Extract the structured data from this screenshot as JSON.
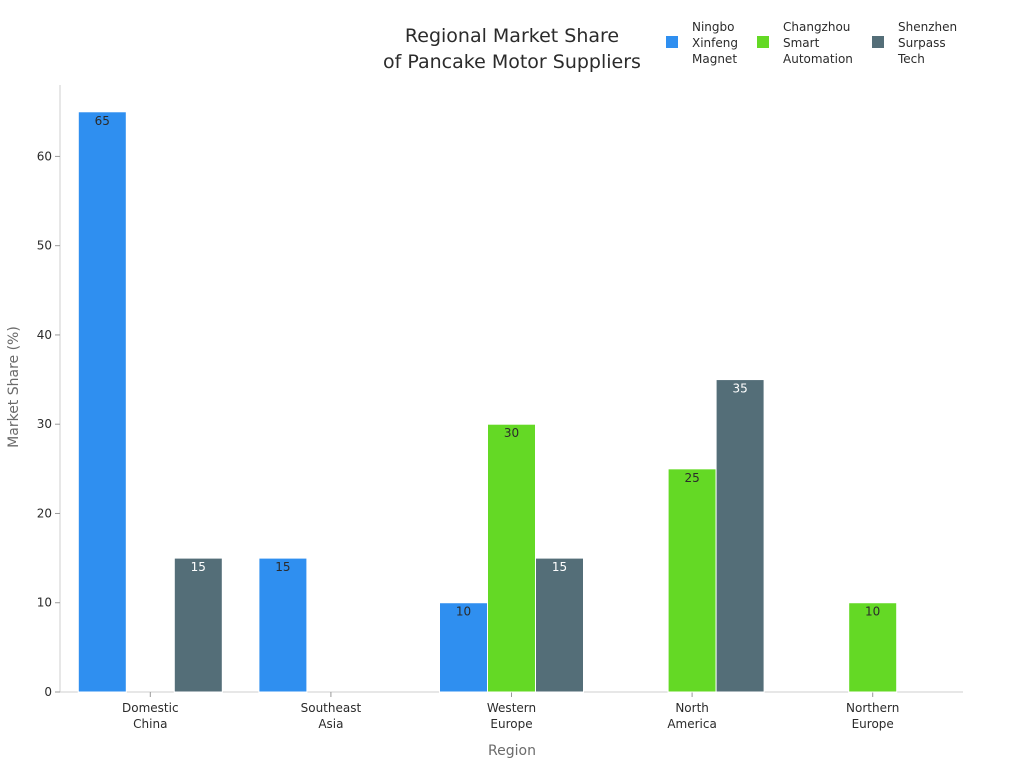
{
  "chart_data": {
    "type": "bar",
    "title_lines": [
      "Regional Market Share",
      "of Pancake Motor Suppliers"
    ],
    "xlabel": "Region",
    "ylabel": "Market Share (%)",
    "categories": [
      [
        "Domestic",
        "China"
      ],
      [
        "Southeast",
        "Asia"
      ],
      [
        "Western",
        "Europe"
      ],
      [
        "North",
        "America"
      ],
      [
        "Northern",
        "Europe"
      ]
    ],
    "series": [
      {
        "name": "Ningbo Xinfeng Magnet",
        "legend_lines": [
          "Ningbo",
          "Xinfeng",
          "Magnet"
        ],
        "color": "#2f8ff0",
        "values": [
          65,
          15,
          10,
          null,
          null
        ]
      },
      {
        "name": "Changzhou Smart Automation",
        "legend_lines": [
          "Changzhou",
          "Smart",
          "Automation"
        ],
        "color": "#64d925",
        "values": [
          null,
          null,
          30,
          25,
          10
        ]
      },
      {
        "name": "Shenzhen Surpass Tech",
        "legend_lines": [
          "Shenzhen",
          "Surpass",
          "Tech"
        ],
        "color": "#546e78",
        "values": [
          15,
          null,
          15,
          35,
          null
        ]
      }
    ],
    "ylim": [
      0,
      68
    ],
    "yticks": [
      0,
      10,
      20,
      30,
      40,
      50,
      60
    ],
    "grid": false,
    "legend_position": "top-right",
    "label_colors": {
      "dark": "#2b2b2b",
      "light": "#ffffff"
    }
  }
}
